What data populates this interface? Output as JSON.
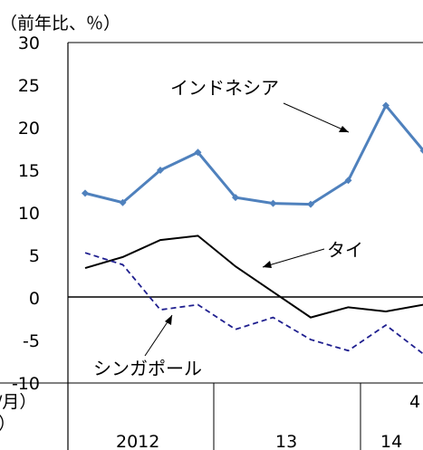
{
  "chart_data": {
    "type": "line",
    "unit_label": "（前年比、％）",
    "ylim": [
      -10,
      30
    ],
    "yticks": [
      "30",
      "25",
      "20",
      "15",
      "10",
      "5",
      "0",
      "-5",
      "-10"
    ],
    "x_points": 10,
    "series": [
      {
        "name": "インドネシア",
        "color": "#4f81bd",
        "style": "solid-marker",
        "values": [
          12.3,
          11.2,
          15.0,
          17.1,
          11.8,
          11.1,
          11.0,
          13.8,
          22.6,
          17.3
        ]
      },
      {
        "name": "タイ",
        "color": "#000000",
        "style": "solid",
        "values": [
          3.5,
          4.8,
          6.8,
          7.3,
          3.7,
          0.7,
          -2.3,
          -1.1,
          -1.6,
          -0.8
        ]
      },
      {
        "name": "シンガポール",
        "color": "#1f1f8f",
        "style": "dashed",
        "values": [
          5.3,
          3.9,
          -1.4,
          -0.8,
          -3.7,
          -2.3,
          -4.9,
          -6.2,
          -3.2,
          -6.6
        ]
      }
    ],
    "x_axis": {
      "row1_label_left": "/月）",
      "row1_value": "4",
      "row2_label_left": "）",
      "years": [
        "2012",
        "13",
        "14"
      ]
    }
  }
}
